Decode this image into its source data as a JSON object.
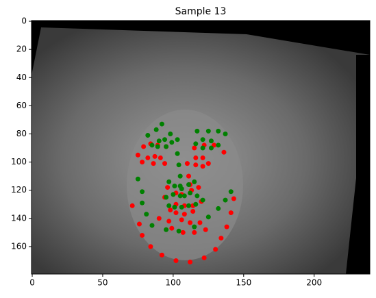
{
  "chart_data": {
    "type": "scatter",
    "title": "Sample 13",
    "xlim": [
      -0.5,
      239.5
    ],
    "ylim": [
      179.5,
      -0.5
    ],
    "xticks": [
      0,
      50,
      100,
      150,
      200
    ],
    "yticks": [
      0,
      20,
      40,
      60,
      80,
      100,
      120,
      140,
      160
    ],
    "series": [
      {
        "color": "red",
        "x": [
          71,
          76,
          78,
          84,
          92,
          102,
          112,
          122,
          130,
          134,
          138,
          141,
          143,
          75,
          79,
          84,
          89,
          95,
          115,
          122,
          129,
          136,
          110,
          111,
          112,
          96,
          102,
          106,
          113,
          118,
          78,
          82,
          87,
          91,
          94,
          86,
          116,
          121,
          125,
          121,
          116,
          94,
          102,
          108,
          114,
          120,
          114,
          108,
          102,
          98,
          90,
          97,
          106,
          112,
          119,
          123,
          115,
          107,
          99
        ],
        "y": [
          131,
          144,
          152,
          160,
          166,
          170,
          171,
          168,
          162,
          154,
          146,
          136,
          126,
          95,
          89,
          87,
          88,
          89,
          90,
          88,
          88,
          93,
          101,
          110,
          116,
          118,
          122,
          123,
          120,
          118,
          100,
          97,
          96,
          97,
          101,
          101,
          97,
          97,
          101,
          103,
          102,
          125,
          130,
          131,
          131,
          128,
          135,
          137,
          136,
          134,
          140,
          142,
          141,
          143,
          143,
          148,
          150,
          150,
          147
        ]
      },
      {
        "color": "green",
        "x": [
          75,
          78,
          78,
          81,
          85,
          95,
          104,
          115,
          125,
          132,
          137,
          141,
          82,
          88,
          92,
          98,
          103,
          117,
          125,
          132,
          137,
          103,
          104,
          105,
          105,
          97,
          101,
          106,
          111,
          115,
          85,
          90,
          94,
          99,
          95,
          89,
          116,
          121,
          127,
          132,
          127,
          121,
          95,
          100,
          105,
          108,
          112,
          117,
          121,
          116,
          111,
          106,
          101,
          97
        ],
        "y": [
          112,
          121,
          129,
          137,
          145,
          148,
          149,
          146,
          139,
          133,
          127,
          121,
          81,
          77,
          73,
          80,
          84,
          78,
          78,
          78,
          80,
          94,
          102,
          110,
          117,
          114,
          117,
          119,
          116,
          114,
          88,
          85,
          84,
          86,
          89,
          89,
          87,
          84,
          85,
          88,
          90,
          90,
          125,
          123,
          124,
          124,
          122,
          124,
          127,
          130,
          131,
          132,
          132,
          131
        ]
      }
    ]
  }
}
